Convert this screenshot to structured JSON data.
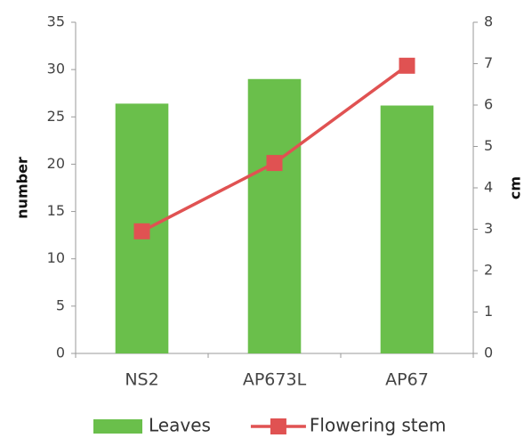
{
  "chart_data": {
    "type": "bar",
    "categories": [
      "NS2",
      "AP673L",
      "AP67"
    ],
    "y_label": "number",
    "y2_label": "cm",
    "ylim": [
      0,
      35
    ],
    "yticks": [
      0,
      5,
      10,
      15,
      20,
      25,
      30,
      35
    ],
    "y2lim": [
      0,
      8
    ],
    "y2ticks": [
      0,
      1,
      2,
      3,
      4,
      5,
      6,
      7,
      8
    ],
    "grid": false,
    "legend": "bottom",
    "series": [
      {
        "name": "Leaves",
        "type": "bar",
        "color": "#6abf4b",
        "values": [
          26.4,
          29,
          26.2
        ]
      },
      {
        "name": "Flowering stem",
        "type": "line",
        "axis": "y2",
        "color": "#e05252",
        "values": [
          2.95,
          4.6,
          6.95
        ]
      }
    ]
  }
}
